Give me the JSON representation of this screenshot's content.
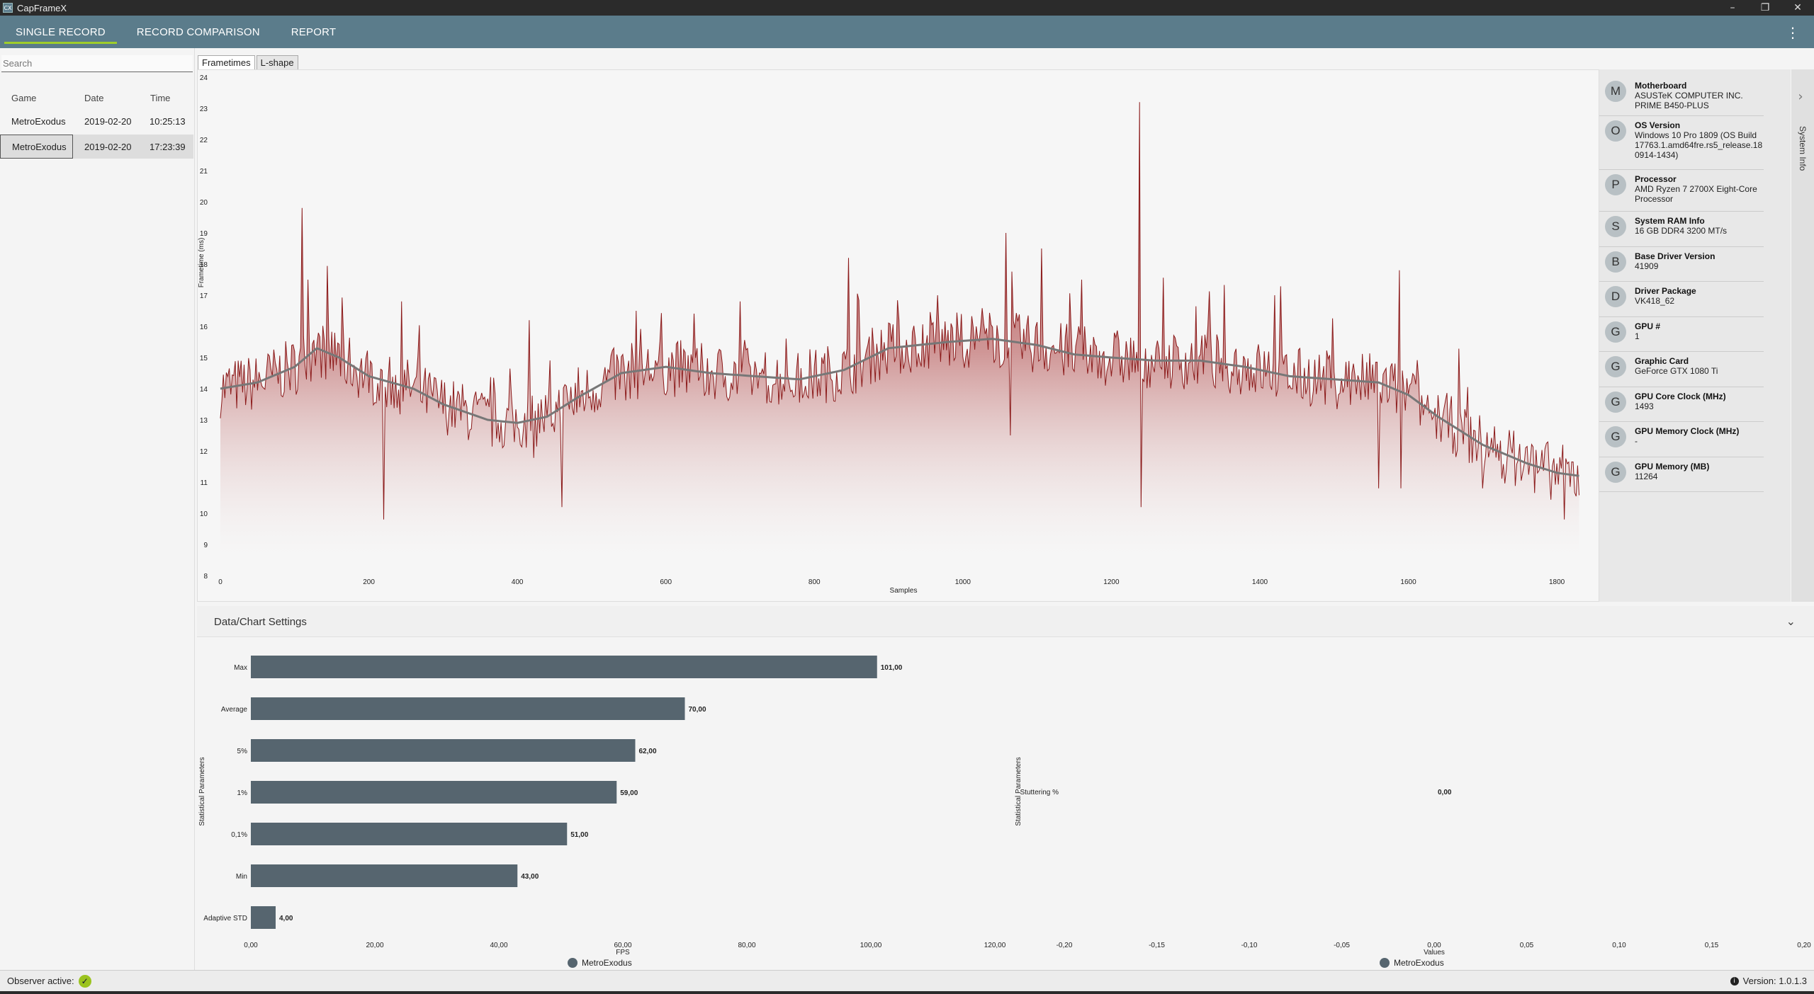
{
  "window": {
    "title": "CapFrameX",
    "icon_text": "CX",
    "minimize": "–",
    "restore": "❐",
    "close": "✕"
  },
  "nav": {
    "tabs": [
      {
        "label": "SINGLE RECORD",
        "active": true
      },
      {
        "label": "RECORD COMPARISON",
        "active": false
      },
      {
        "label": "REPORT",
        "active": false
      }
    ],
    "menu_icon": "⋮"
  },
  "sidebar": {
    "search_placeholder": "Search",
    "columns": [
      "Game",
      "Date",
      "Time"
    ],
    "records": [
      {
        "game": "MetroExodus",
        "date": "2019-02-20",
        "time": "10:25:13",
        "selected": false
      },
      {
        "game": "MetroExodus",
        "date": "2019-02-20",
        "time": "17:23:39",
        "selected": true
      }
    ]
  },
  "chart_tabs": [
    {
      "label": "Frametimes",
      "active": true
    },
    {
      "label": "L-shape",
      "active": false
    }
  ],
  "sysinfo": {
    "side_label": "System Info",
    "arrow": "›",
    "items": [
      {
        "initial": "M",
        "title": "Motherboard",
        "value": "ASUSTeK COMPUTER INC.\nPRIME B450-PLUS"
      },
      {
        "initial": "O",
        "title": "OS Version",
        "value": "Windows 10 Pro 1809 (OS Build 17763.1.amd64fre.rs5_release.18 0914-1434)"
      },
      {
        "initial": "P",
        "title": "Processor",
        "value": "AMD Ryzen 7 2700X Eight-Core Processor"
      },
      {
        "initial": "S",
        "title": "System RAM Info",
        "value": "16 GB DDR4 3200 MT/s"
      },
      {
        "initial": "B",
        "title": "Base Driver Version",
        "value": "41909"
      },
      {
        "initial": "D",
        "title": "Driver Package",
        "value": "VK418_62"
      },
      {
        "initial": "G",
        "title": "GPU #",
        "value": "1"
      },
      {
        "initial": "G",
        "title": "Graphic Card",
        "value": "GeForce GTX 1080 Ti"
      },
      {
        "initial": "G",
        "title": "GPU Core Clock (MHz)",
        "value": "1493"
      },
      {
        "initial": "G",
        "title": "GPU Memory Clock (MHz)",
        "value": "-"
      },
      {
        "initial": "G",
        "title": "GPU Memory (MB)",
        "value": "11264"
      }
    ]
  },
  "settings": {
    "title": "Data/Chart Settings",
    "chevron": "⌄"
  },
  "status": {
    "observer_label": "Observer active:",
    "check": "✓",
    "version": "Version: 1.0.1.3",
    "info_icon": "i"
  },
  "colors": {
    "frametime_line": "#8b1a1a",
    "moving_avg": "#777777",
    "bar": "#56656f",
    "nav": "#5b7c8b",
    "accent": "#9fce2b"
  },
  "chart_data": [
    {
      "type": "line",
      "title": "",
      "xlabel": "Samples",
      "ylabel": "Frametime (ms)",
      "xlim": [
        0,
        1840
      ],
      "ylim": [
        8,
        24
      ],
      "x_ticks": [
        "0",
        "200",
        "400",
        "600",
        "800",
        "1000",
        "1200",
        "1400",
        "1600",
        "1800"
      ],
      "y_ticks": [
        "8",
        "9",
        "10",
        "11",
        "12",
        "13",
        "14",
        "15",
        "16",
        "17",
        "18",
        "19",
        "20",
        "21",
        "22",
        "23",
        "24"
      ],
      "series": [
        {
          "name": "",
          "style": "frametimes",
          "baseline": [
            [
              0,
              14.0
            ],
            [
              50,
              14.2
            ],
            [
              100,
              14.7
            ],
            [
              130,
              15.3
            ],
            [
              160,
              15.0
            ],
            [
              200,
              14.4
            ],
            [
              260,
              14.0
            ],
            [
              300,
              13.5
            ],
            [
              360,
              13.0
            ],
            [
              400,
              12.9
            ],
            [
              440,
              13.1
            ],
            [
              480,
              13.7
            ],
            [
              540,
              14.5
            ],
            [
              600,
              14.7
            ],
            [
              660,
              14.5
            ],
            [
              720,
              14.4
            ],
            [
              780,
              14.3
            ],
            [
              840,
              14.6
            ],
            [
              900,
              15.3
            ],
            [
              980,
              15.5
            ],
            [
              1040,
              15.6
            ],
            [
              1100,
              15.4
            ],
            [
              1150,
              15.1
            ],
            [
              1200,
              15.0
            ],
            [
              1260,
              14.9
            ],
            [
              1320,
              14.9
            ],
            [
              1380,
              14.7
            ],
            [
              1440,
              14.4
            ],
            [
              1500,
              14.3
            ],
            [
              1560,
              14.2
            ],
            [
              1600,
              13.8
            ],
            [
              1640,
              13.1
            ],
            [
              1700,
              12.2
            ],
            [
              1760,
              11.6
            ],
            [
              1800,
              11.3
            ],
            [
              1830,
              11.2
            ]
          ],
          "spikes": [
            [
              110,
              19.8
            ],
            [
              117,
              17.5
            ],
            [
              220,
              9.8
            ],
            [
              244,
              16.8
            ],
            [
              415,
              16.2
            ],
            [
              460,
              10.2
            ],
            [
              560,
              16.5
            ],
            [
              700,
              16.8
            ],
            [
              845,
              18.2
            ],
            [
              880,
              15.3
            ],
            [
              965,
              17.0
            ],
            [
              1058,
              19.0
            ],
            [
              1063,
              12.5
            ],
            [
              1105,
              18.5
            ],
            [
              1160,
              17.5
            ],
            [
              1238,
              23.2
            ],
            [
              1240,
              10.2
            ],
            [
              1330,
              16.0
            ],
            [
              1420,
              17.0
            ],
            [
              1560,
              10.8
            ],
            [
              1588,
              17.8
            ],
            [
              1590,
              10.8
            ],
            [
              1625,
              13.8
            ],
            [
              1700,
              10.8
            ],
            [
              1810,
              9.8
            ]
          ]
        },
        {
          "name": "",
          "style": "moving-average"
        }
      ]
    },
    {
      "type": "bar",
      "orientation": "horizontal",
      "title": "",
      "xlabel": "FPS",
      "ylabel": "Statistical Parameters",
      "xlim": [
        0,
        120
      ],
      "x_ticks": [
        "0,00",
        "20,00",
        "40,00",
        "60,00",
        "80,00",
        "100,00",
        "120,00"
      ],
      "categories": [
        "Max",
        "Average",
        "5%",
        "1%",
        "0,1%",
        "Min",
        "Adaptive STD"
      ],
      "series": [
        {
          "name": "MetroExodus",
          "values": [
            101,
            70,
            62,
            59,
            51,
            43,
            4
          ],
          "labels": [
            "101,00",
            "70,00",
            "62,00",
            "59,00",
            "51,00",
            "43,00",
            "4,00"
          ]
        }
      ],
      "legend": "bottom-center"
    },
    {
      "type": "bar",
      "orientation": "horizontal",
      "title": "",
      "xlabel": "Values",
      "ylabel": "Statistical Parameters",
      "xlim": [
        -0.2,
        0.2
      ],
      "x_ticks": [
        "-0,20",
        "-0,15",
        "-0,10",
        "-0,05",
        "0,00",
        "0,05",
        "0,10",
        "0,15",
        "0,20"
      ],
      "categories": [
        "Stuttering %"
      ],
      "series": [
        {
          "name": "MetroExodus",
          "values": [
            0
          ],
          "labels": [
            "0,00"
          ]
        }
      ],
      "legend": "bottom-center"
    }
  ]
}
